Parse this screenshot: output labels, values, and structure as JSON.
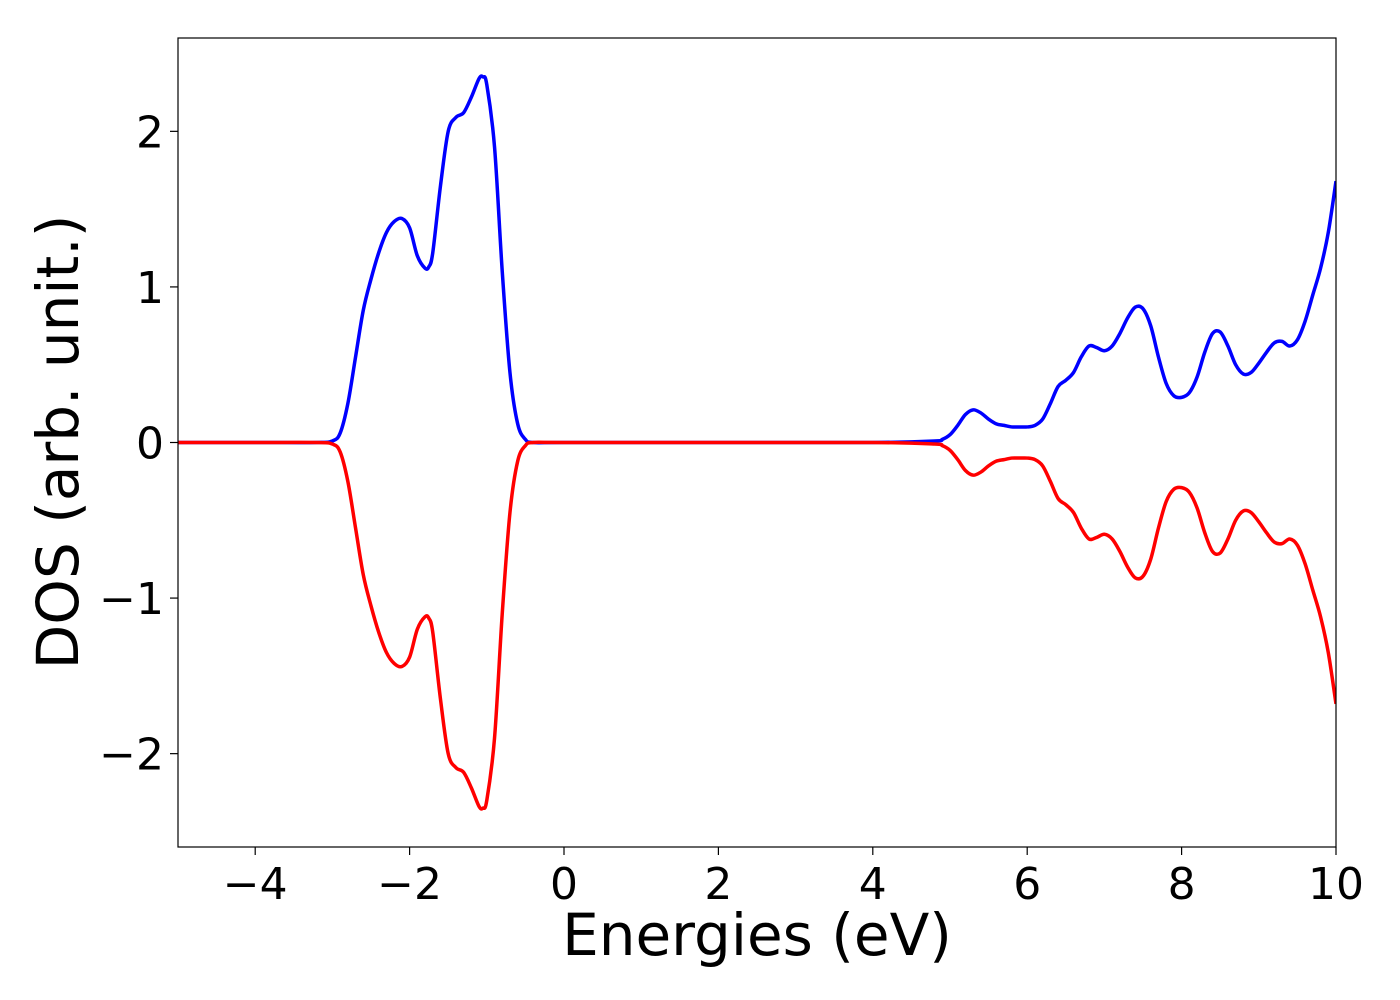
{
  "chart_data": {
    "type": "line",
    "title": "",
    "xlabel": "Energies (eV)",
    "ylabel": "DOS (arb. unit.)",
    "xlim": [
      -5,
      10
    ],
    "ylim": [
      -2.6,
      2.6
    ],
    "grid": false,
    "x_ticks": [
      -4,
      -2,
      0,
      2,
      4,
      6,
      8,
      10
    ],
    "x_tick_labels": [
      "−4",
      "−2",
      "0",
      "2",
      "4",
      "6",
      "8",
      "10"
    ],
    "y_ticks": [
      -2,
      -1,
      0,
      1,
      2
    ],
    "y_tick_labels": [
      "−2",
      "−1",
      "0",
      "1",
      "2"
    ],
    "series": [
      {
        "color": "#0000ff",
        "x": [
          -5,
          -4,
          -3.2,
          -3.0,
          -2.9,
          -2.8,
          -2.7,
          -2.6,
          -2.5,
          -2.4,
          -2.3,
          -2.2,
          -2.1,
          -2.0,
          -1.9,
          -1.8,
          -1.75,
          -1.7,
          -1.6,
          -1.5,
          -1.4,
          -1.3,
          -1.2,
          -1.1,
          -1.05,
          -1.0,
          -0.9,
          -0.8,
          -0.7,
          -0.6,
          -0.5,
          -0.4,
          0,
          2,
          4,
          4.8,
          4.9,
          5.0,
          5.1,
          5.2,
          5.3,
          5.4,
          5.5,
          5.6,
          5.7,
          5.8,
          5.9,
          6.0,
          6.1,
          6.2,
          6.3,
          6.4,
          6.5,
          6.6,
          6.7,
          6.8,
          6.9,
          7.0,
          7.1,
          7.2,
          7.3,
          7.4,
          7.5,
          7.6,
          7.7,
          7.8,
          7.9,
          8.0,
          8.1,
          8.2,
          8.3,
          8.4,
          8.5,
          8.6,
          8.7,
          8.8,
          8.9,
          9.0,
          9.1,
          9.2,
          9.3,
          9.4,
          9.5,
          9.6,
          9.7,
          9.8,
          9.9,
          10.0
        ],
        "y": [
          0,
          0,
          0,
          0.01,
          0.06,
          0.25,
          0.55,
          0.85,
          1.05,
          1.22,
          1.35,
          1.42,
          1.44,
          1.38,
          1.2,
          1.12,
          1.13,
          1.22,
          1.65,
          2.0,
          2.09,
          2.12,
          2.22,
          2.34,
          2.35,
          2.3,
          1.9,
          1.1,
          0.45,
          0.12,
          0.02,
          0,
          0,
          0,
          0,
          0.01,
          0.02,
          0.05,
          0.11,
          0.18,
          0.21,
          0.19,
          0.15,
          0.12,
          0.11,
          0.1,
          0.1,
          0.1,
          0.11,
          0.15,
          0.25,
          0.36,
          0.4,
          0.45,
          0.55,
          0.62,
          0.61,
          0.59,
          0.62,
          0.7,
          0.8,
          0.87,
          0.86,
          0.75,
          0.55,
          0.38,
          0.3,
          0.29,
          0.32,
          0.42,
          0.58,
          0.7,
          0.71,
          0.62,
          0.5,
          0.44,
          0.45,
          0.51,
          0.58,
          0.64,
          0.65,
          0.62,
          0.66,
          0.78,
          0.95,
          1.12,
          1.35,
          1.68
        ]
      },
      {
        "color": "#ff0000",
        "x": [
          -5,
          -4,
          -3.2,
          -3.0,
          -2.9,
          -2.8,
          -2.7,
          -2.6,
          -2.5,
          -2.4,
          -2.3,
          -2.2,
          -2.1,
          -2.0,
          -1.9,
          -1.8,
          -1.75,
          -1.7,
          -1.6,
          -1.5,
          -1.4,
          -1.3,
          -1.2,
          -1.1,
          -1.05,
          -1.0,
          -0.9,
          -0.8,
          -0.7,
          -0.6,
          -0.5,
          -0.4,
          0,
          2,
          4,
          4.8,
          4.9,
          5.0,
          5.1,
          5.2,
          5.3,
          5.4,
          5.5,
          5.6,
          5.7,
          5.8,
          5.9,
          6.0,
          6.1,
          6.2,
          6.3,
          6.4,
          6.5,
          6.6,
          6.7,
          6.8,
          6.9,
          7.0,
          7.1,
          7.2,
          7.3,
          7.4,
          7.5,
          7.6,
          7.7,
          7.8,
          7.9,
          8.0,
          8.1,
          8.2,
          8.3,
          8.4,
          8.5,
          8.6,
          8.7,
          8.8,
          8.9,
          9.0,
          9.1,
          9.2,
          9.3,
          9.4,
          9.5,
          9.6,
          9.7,
          9.8,
          9.9,
          10.0
        ],
        "y": [
          0,
          0,
          0,
          -0.01,
          -0.06,
          -0.25,
          -0.55,
          -0.85,
          -1.05,
          -1.22,
          -1.35,
          -1.42,
          -1.44,
          -1.38,
          -1.2,
          -1.12,
          -1.13,
          -1.22,
          -1.65,
          -2.0,
          -2.09,
          -2.12,
          -2.22,
          -2.34,
          -2.35,
          -2.3,
          -1.9,
          -1.1,
          -0.45,
          -0.12,
          -0.02,
          0,
          0,
          0,
          0,
          -0.01,
          -0.02,
          -0.05,
          -0.11,
          -0.18,
          -0.21,
          -0.19,
          -0.15,
          -0.12,
          -0.11,
          -0.1,
          -0.1,
          -0.1,
          -0.11,
          -0.15,
          -0.25,
          -0.36,
          -0.4,
          -0.45,
          -0.55,
          -0.62,
          -0.61,
          -0.59,
          -0.62,
          -0.7,
          -0.8,
          -0.87,
          -0.86,
          -0.75,
          -0.55,
          -0.38,
          -0.3,
          -0.29,
          -0.32,
          -0.42,
          -0.58,
          -0.7,
          -0.71,
          -0.62,
          -0.5,
          -0.44,
          -0.45,
          -0.51,
          -0.58,
          -0.64,
          -0.65,
          -0.62,
          -0.66,
          -0.78,
          -0.95,
          -1.12,
          -1.35,
          -1.68
        ]
      }
    ]
  }
}
